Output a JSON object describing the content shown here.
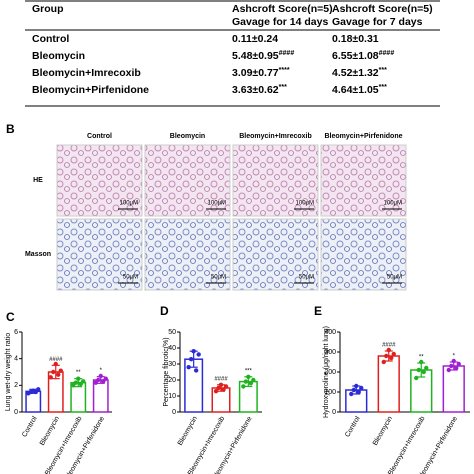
{
  "table": {
    "header": [
      [
        "Group"
      ],
      [
        "Ashcroft Score(n=5)",
        "Gavage for 14 days"
      ],
      [
        "Ashcroft Score(n=5)",
        "Gavage for 7 days"
      ]
    ],
    "rows": [
      [
        "Control",
        {
          "text": "0.11±0.24"
        },
        {
          "text": "0.18±0.31"
        }
      ],
      [
        "Bleomycin",
        {
          "text": "5.48±0.95",
          "sig": "####"
        },
        {
          "text": "6.55±1.08",
          "sig": "####"
        }
      ],
      [
        "Bleomycin+Imrecoxib",
        {
          "text": "3.09±0.77",
          "sig": "****"
        },
        {
          "text": "4.52±1.32",
          "sig": "***"
        }
      ],
      [
        "Bleomycin+Pirfenidone",
        {
          "text": "3.63±0.62",
          "sig": "***"
        },
        {
          "text": "4.64±1.05",
          "sig": "***"
        }
      ]
    ]
  },
  "histology": {
    "label": "B",
    "columns": [
      "Control",
      "Bleomycin",
      "Bleomycin+Imrecoxib",
      "Bleomycin+Pirfenidone"
    ],
    "rows": [
      {
        "name": "HE",
        "scale": "100μM"
      },
      {
        "name": "Masson",
        "scale": "50μM"
      }
    ]
  },
  "chart_data": [
    {
      "type": "bar",
      "label": "C",
      "y_label": "Lung wet-dry weight ratio",
      "categories": [
        "Control",
        "Bleomycin",
        "Bleomycin+Imrecoxib",
        "Bleomycin+Pirfenidone"
      ],
      "values": [
        1.55,
        3.0,
        2.2,
        2.4
      ],
      "errors": [
        0.15,
        0.5,
        0.3,
        0.25
      ],
      "points": [
        [
          1.4,
          1.5,
          1.6,
          1.5,
          1.7
        ],
        [
          2.6,
          3.0,
          3.6,
          2.8,
          3.1
        ],
        [
          2.0,
          2.2,
          2.5,
          2.1,
          2.3
        ],
        [
          2.2,
          2.4,
          2.7,
          2.3,
          2.5
        ]
      ],
      "annotations": [
        null,
        "####",
        "**",
        "*"
      ],
      "colors": [
        "#2b2bd6",
        "#e0201e",
        "#1fb31f",
        "#a020d0"
      ],
      "ylim": [
        0,
        6
      ],
      "yticks": [
        0,
        2,
        4,
        6
      ]
    },
    {
      "type": "bar",
      "label": "D",
      "y_label": "Percentage fibrotic(%)",
      "categories": [
        "Bleomycin",
        "Bleomycin+Imrecoxib",
        "Bleomycin+Pirfenidone"
      ],
      "values": [
        33,
        15,
        19
      ],
      "errors": [
        5,
        2,
        3
      ],
      "points": [
        [
          28,
          33,
          38,
          26,
          36
        ],
        [
          13,
          15,
          17,
          14,
          16
        ],
        [
          16,
          19,
          22,
          18,
          20
        ]
      ],
      "annotations": [
        null,
        "####",
        "***"
      ],
      "colors": [
        "#2b2bd6",
        "#e0201e",
        "#1fb31f"
      ],
      "ylim": [
        0,
        50
      ],
      "yticks": [
        0,
        10,
        20,
        30,
        40,
        50
      ]
    },
    {
      "type": "bar",
      "label": "E",
      "y_label": "Hydroxyproline (μg/right lung)",
      "categories": [
        "Control",
        "Bleomycin",
        "Bleomycin+Imrecoxib",
        "Bleomycin+Pirfenidone"
      ],
      "values": [
        110,
        280,
        210,
        230
      ],
      "errors": [
        20,
        25,
        35,
        20
      ],
      "points": [
        [
          90,
          110,
          130,
          100,
          120
        ],
        [
          250,
          280,
          310,
          270,
          290
        ],
        [
          170,
          210,
          250,
          200,
          220
        ],
        [
          210,
          230,
          255,
          220,
          240
        ]
      ],
      "annotations": [
        null,
        "####",
        "**",
        "*"
      ],
      "colors": [
        "#2b2bd6",
        "#e0201e",
        "#1fb31f",
        "#a020d0"
      ],
      "ylim": [
        0,
        400
      ],
      "yticks": [
        0,
        100,
        200,
        300,
        400
      ]
    }
  ]
}
